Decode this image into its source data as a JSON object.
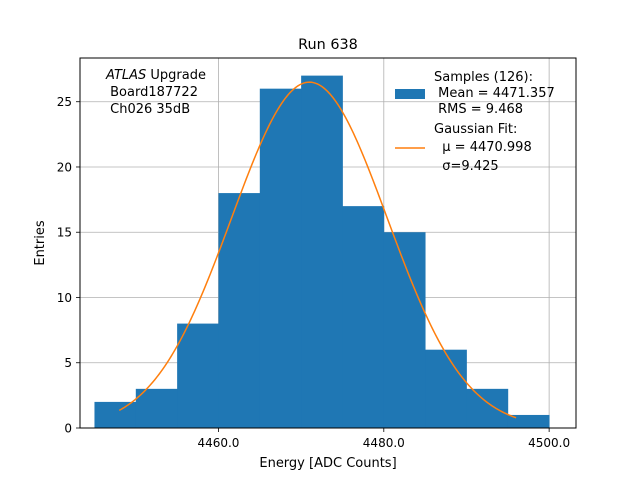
{
  "colors": {
    "bar": "#1f77b4",
    "fit": "#ff7f0e",
    "grid": "#b0b0b0",
    "axis": "#000000"
  },
  "chart_data": {
    "type": "bar",
    "title": "Run 638",
    "xlabel": "Energy [ADC Counts]",
    "ylabel": "Entries",
    "xlim": [
      4443.25,
      4503.25
    ],
    "ylim": [
      0,
      28.35
    ],
    "grid": true,
    "x_ticks": [
      4460.0,
      4480.0,
      4500.0
    ],
    "x_tick_labels": [
      "4460.0",
      "4480.0",
      "4500.0"
    ],
    "y_ticks": [
      0,
      5,
      10,
      15,
      20,
      25
    ],
    "y_tick_labels": [
      "0",
      "5",
      "10",
      "15",
      "20",
      "25"
    ],
    "bin_edges": [
      4445,
      4450,
      4455,
      4460,
      4465,
      4470,
      4475,
      4480,
      4485,
      4490,
      4495,
      4500
    ],
    "counts": [
      2,
      3,
      8,
      18,
      26,
      27,
      17,
      15,
      6,
      3,
      1
    ],
    "fit": {
      "type": "gaussian",
      "mu": 4470.998,
      "sigma": 9.425,
      "amplitude": 26.5,
      "x_range": [
        4448,
        4496
      ]
    },
    "annotation": {
      "line1_italic": "ATLAS",
      "line1_rest": " Upgrade",
      "line2": " Board187722",
      "line3": " Ch026 35dB"
    },
    "legend": {
      "position": "top-right",
      "entries": [
        {
          "kind": "patch",
          "lines": [
            "Samples (126):",
            " Mean = 4471.357",
            " RMS = 9.468"
          ]
        },
        {
          "kind": "line",
          "lines": [
            "Gaussian Fit:",
            "  μ = 4470.998",
            "  σ=9.425"
          ]
        }
      ]
    }
  }
}
